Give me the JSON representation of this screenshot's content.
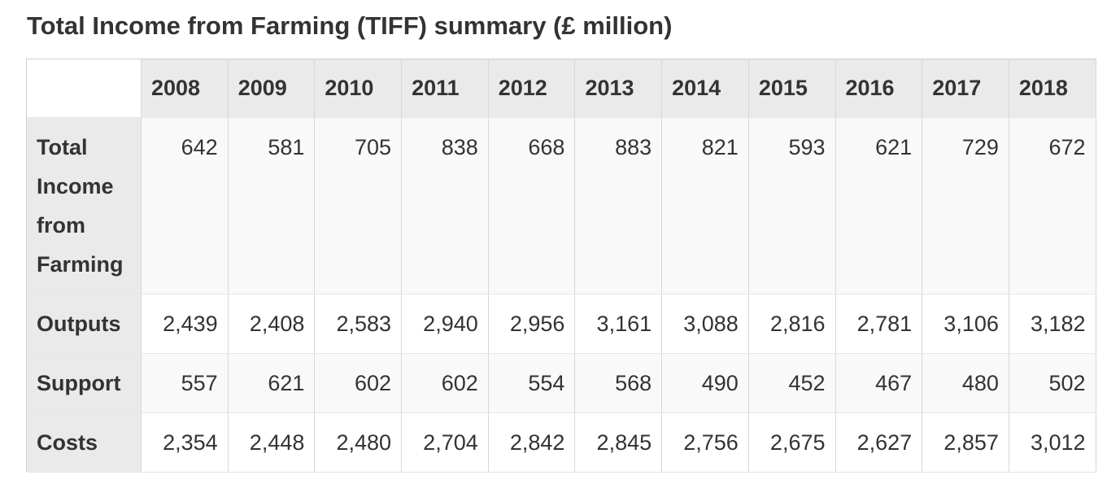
{
  "caption": "Total Income from Farming (TIFF) summary (£ million)",
  "table": {
    "corner_label": "",
    "years": [
      "2008",
      "2009",
      "2010",
      "2011",
      "2012",
      "2013",
      "2014",
      "2015",
      "2016",
      "2017",
      "2018"
    ],
    "rows": [
      {
        "label": "Total Income from Farming",
        "values": [
          "642",
          "581",
          "705",
          "838",
          "668",
          "883",
          "821",
          "593",
          "621",
          "729",
          "672"
        ]
      },
      {
        "label": "Outputs",
        "values": [
          "2,439",
          "2,408",
          "2,583",
          "2,940",
          "2,956",
          "3,161",
          "3,088",
          "2,816",
          "2,781",
          "3,106",
          "3,182"
        ]
      },
      {
        "label": "Support",
        "values": [
          "557",
          "621",
          "602",
          "602",
          "554",
          "568",
          "490",
          "452",
          "467",
          "480",
          "502"
        ]
      },
      {
        "label": "Costs",
        "values": [
          "2,354",
          "2,448",
          "2,480",
          "2,704",
          "2,842",
          "2,845",
          "2,756",
          "2,675",
          "2,627",
          "2,857",
          "3,012"
        ]
      }
    ]
  }
}
